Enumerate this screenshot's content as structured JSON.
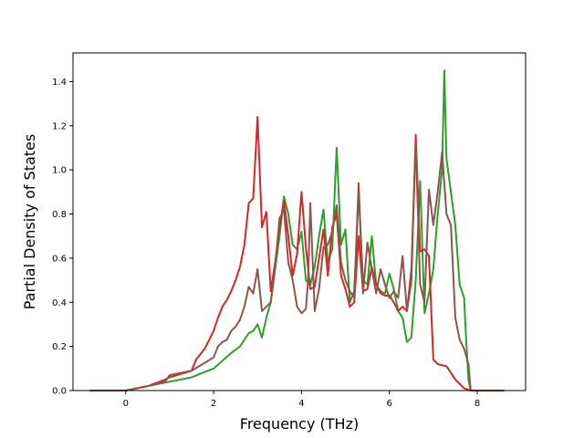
{
  "chart_data": {
    "type": "line",
    "title": "",
    "xlabel": "Frequency (THz)",
    "ylabel": "Partial Density of States",
    "xlim": [
      -1.2,
      9.1
    ],
    "ylim": [
      0,
      1.53
    ],
    "xticks": [
      0,
      2,
      4,
      6,
      8
    ],
    "yticks": [
      0.0,
      0.2,
      0.4,
      0.6,
      0.8,
      1.0,
      1.2,
      1.4
    ],
    "xtick_labels": [
      "0",
      "2",
      "4",
      "6",
      "8"
    ],
    "ytick_labels": [
      "0.0",
      "0.2",
      "0.4",
      "0.6",
      "0.8",
      "1.0",
      "1.2",
      "1.4"
    ],
    "grid": false,
    "legend": "none",
    "series": [
      {
        "color": "#2ca02c",
        "points": [
          [
            -0.8,
            0
          ],
          [
            0,
            0
          ],
          [
            0.5,
            0.02
          ],
          [
            1,
            0.04
          ],
          [
            1.5,
            0.06
          ],
          [
            2,
            0.1
          ],
          [
            2.4,
            0.17
          ],
          [
            2.6,
            0.2
          ],
          [
            2.8,
            0.26
          ],
          [
            2.9,
            0.27
          ],
          [
            3,
            0.3
          ],
          [
            3.1,
            0.24
          ],
          [
            3.2,
            0.33
          ],
          [
            3.3,
            0.4
          ],
          [
            3.4,
            0.55
          ],
          [
            3.5,
            0.7
          ],
          [
            3.6,
            0.88
          ],
          [
            3.7,
            0.8
          ],
          [
            3.8,
            0.66
          ],
          [
            3.9,
            0.64
          ],
          [
            4,
            0.72
          ],
          [
            4.1,
            0.5
          ],
          [
            4.2,
            0.48
          ],
          [
            4.3,
            0.56
          ],
          [
            4.4,
            0.7
          ],
          [
            4.5,
            0.82
          ],
          [
            4.6,
            0.58
          ],
          [
            4.7,
            0.64
          ],
          [
            4.8,
            1.1
          ],
          [
            4.9,
            0.66
          ],
          [
            5,
            0.73
          ],
          [
            5.1,
            0.4
          ],
          [
            5.2,
            0.45
          ],
          [
            5.3,
            0.9
          ],
          [
            5.4,
            0.5
          ],
          [
            5.5,
            0.48
          ],
          [
            5.6,
            0.7
          ],
          [
            5.7,
            0.48
          ],
          [
            5.8,
            0.45
          ],
          [
            5.9,
            0.44
          ],
          [
            6,
            0.53
          ],
          [
            6.1,
            0.46
          ],
          [
            6.2,
            0.36
          ],
          [
            6.3,
            0.33
          ],
          [
            6.4,
            0.22
          ],
          [
            6.5,
            0.24
          ],
          [
            6.6,
            0.5
          ],
          [
            6.7,
            0.95
          ],
          [
            6.8,
            0.35
          ],
          [
            6.9,
            0.44
          ],
          [
            7,
            0.55
          ],
          [
            7.1,
            0.8
          ],
          [
            7.2,
            1.0
          ],
          [
            7.25,
            1.45
          ],
          [
            7.3,
            1.05
          ],
          [
            7.4,
            0.9
          ],
          [
            7.5,
            0.75
          ],
          [
            7.6,
            0.48
          ],
          [
            7.7,
            0.42
          ],
          [
            7.75,
            0.22
          ],
          [
            7.8,
            0.05
          ],
          [
            7.85,
            0
          ]
        ]
      },
      {
        "color": "#d62728",
        "points": [
          [
            -0.8,
            0
          ],
          [
            0,
            0
          ],
          [
            0.5,
            0.02
          ],
          [
            0.9,
            0.05
          ],
          [
            1,
            0.06
          ],
          [
            1.5,
            0.09
          ],
          [
            1.6,
            0.14
          ],
          [
            1.8,
            0.19
          ],
          [
            2,
            0.27
          ],
          [
            2.1,
            0.33
          ],
          [
            2.2,
            0.38
          ],
          [
            2.3,
            0.41
          ],
          [
            2.4,
            0.45
          ],
          [
            2.5,
            0.5
          ],
          [
            2.6,
            0.56
          ],
          [
            2.7,
            0.66
          ],
          [
            2.8,
            0.85
          ],
          [
            2.9,
            0.87
          ],
          [
            3,
            1.24
          ],
          [
            3.1,
            0.74
          ],
          [
            3.2,
            0.81
          ],
          [
            3.3,
            0.45
          ],
          [
            3.4,
            0.58
          ],
          [
            3.5,
            0.74
          ],
          [
            3.6,
            0.86
          ],
          [
            3.7,
            0.7
          ],
          [
            3.8,
            0.52
          ],
          [
            3.9,
            0.62
          ],
          [
            4,
            0.9
          ],
          [
            4.1,
            0.65
          ],
          [
            4.2,
            0.46
          ],
          [
            4.3,
            0.47
          ],
          [
            4.4,
            0.6
          ],
          [
            4.5,
            0.73
          ],
          [
            4.6,
            0.52
          ],
          [
            4.7,
            0.74
          ],
          [
            4.8,
            0.8
          ],
          [
            4.9,
            0.52
          ],
          [
            5,
            0.46
          ],
          [
            5.1,
            0.38
          ],
          [
            5.2,
            0.4
          ],
          [
            5.3,
            0.7
          ],
          [
            5.4,
            0.45
          ],
          [
            5.5,
            0.46
          ],
          [
            5.6,
            0.56
          ],
          [
            5.7,
            0.48
          ],
          [
            5.8,
            0.44
          ],
          [
            5.9,
            0.43
          ],
          [
            6,
            0.43
          ],
          [
            6.1,
            0.4
          ],
          [
            6.2,
            0.36
          ],
          [
            6.3,
            0.38
          ],
          [
            6.4,
            0.36
          ],
          [
            6.5,
            0.5
          ],
          [
            6.6,
            1.16
          ],
          [
            6.7,
            0.63
          ],
          [
            6.8,
            0.64
          ],
          [
            6.9,
            0.61
          ],
          [
            7,
            0.14
          ],
          [
            7.1,
            0.12
          ],
          [
            7.3,
            0.11
          ],
          [
            7.4,
            0.08
          ],
          [
            7.5,
            0.05
          ],
          [
            7.6,
            0.03
          ],
          [
            7.7,
            0.01
          ],
          [
            7.85,
            0
          ],
          [
            8.6,
            0
          ]
        ]
      },
      {
        "color": "#8c564b",
        "points": [
          [
            -0.8,
            0
          ],
          [
            0,
            0
          ],
          [
            0.5,
            0.02
          ],
          [
            0.9,
            0.04
          ],
          [
            1,
            0.07
          ],
          [
            1.5,
            0.09
          ],
          [
            2,
            0.15
          ],
          [
            2.1,
            0.2
          ],
          [
            2.2,
            0.22
          ],
          [
            2.3,
            0.23
          ],
          [
            2.4,
            0.27
          ],
          [
            2.5,
            0.29
          ],
          [
            2.6,
            0.32
          ],
          [
            2.7,
            0.38
          ],
          [
            2.8,
            0.47
          ],
          [
            2.9,
            0.44
          ],
          [
            3,
            0.55
          ],
          [
            3.1,
            0.36
          ],
          [
            3.2,
            0.38
          ],
          [
            3.3,
            0.4
          ],
          [
            3.4,
            0.56
          ],
          [
            3.5,
            0.78
          ],
          [
            3.6,
            0.82
          ],
          [
            3.7,
            0.58
          ],
          [
            3.8,
            0.5
          ],
          [
            3.9,
            0.38
          ],
          [
            4,
            0.35
          ],
          [
            4.1,
            0.37
          ],
          [
            4.15,
            0.5
          ],
          [
            4.2,
            0.85
          ],
          [
            4.3,
            0.36
          ],
          [
            4.4,
            0.46
          ],
          [
            4.5,
            0.65
          ],
          [
            4.6,
            0.66
          ],
          [
            4.7,
            0.72
          ],
          [
            4.8,
            0.84
          ],
          [
            4.9,
            0.58
          ],
          [
            5,
            0.5
          ],
          [
            5.1,
            0.45
          ],
          [
            5.2,
            0.42
          ],
          [
            5.3,
            0.94
          ],
          [
            5.4,
            0.44
          ],
          [
            5.5,
            0.67
          ],
          [
            5.6,
            0.55
          ],
          [
            5.7,
            0.44
          ],
          [
            5.8,
            0.55
          ],
          [
            5.9,
            0.48
          ],
          [
            6,
            0.42
          ],
          [
            6.1,
            0.45
          ],
          [
            6.2,
            0.42
          ],
          [
            6.3,
            0.61
          ],
          [
            6.4,
            0.36
          ],
          [
            6.5,
            0.55
          ],
          [
            6.6,
            1.13
          ],
          [
            6.7,
            0.48
          ],
          [
            6.8,
            0.4
          ],
          [
            6.9,
            0.91
          ],
          [
            7,
            0.75
          ],
          [
            7.1,
            0.9
          ],
          [
            7.2,
            1.08
          ],
          [
            7.3,
            0.8
          ],
          [
            7.4,
            0.75
          ],
          [
            7.5,
            0.33
          ],
          [
            7.6,
            0.23
          ],
          [
            7.7,
            0.19
          ],
          [
            7.8,
            0.12
          ],
          [
            7.85,
            0
          ]
        ]
      }
    ]
  }
}
